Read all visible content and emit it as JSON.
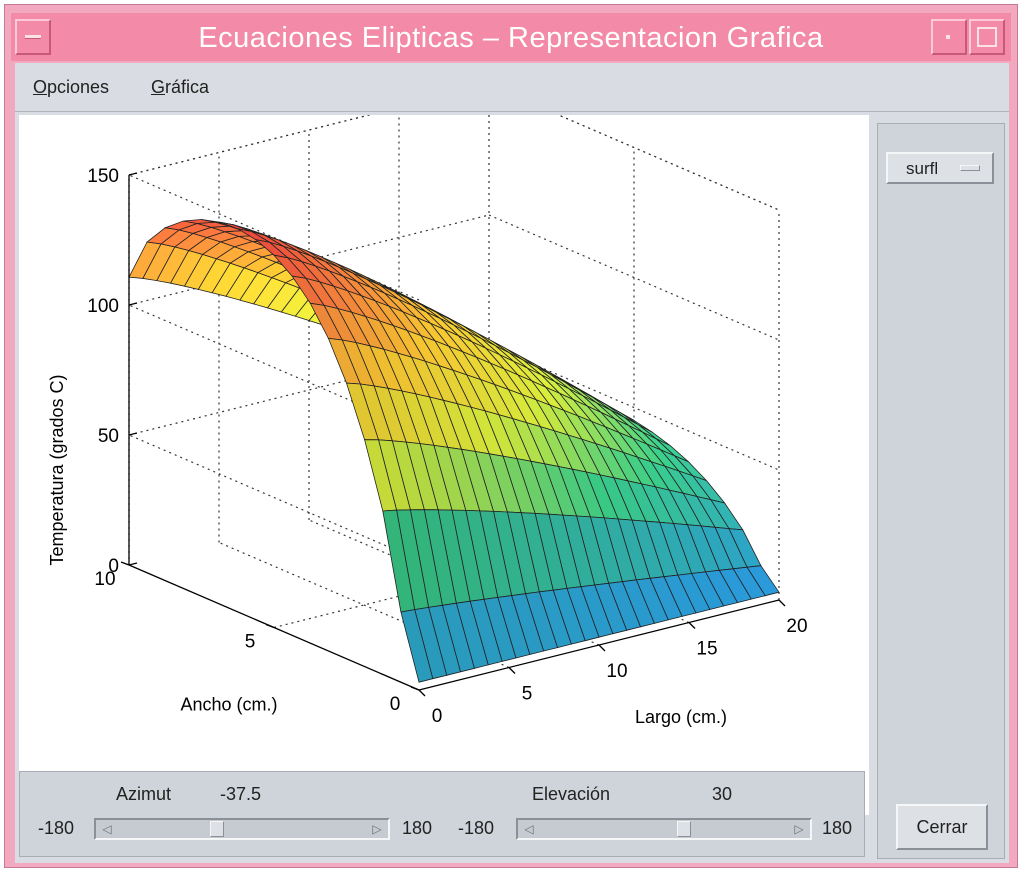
{
  "window": {
    "title": "Ecuaciones Elipticas – Representacion Grafica",
    "titlebar_color": "#f28aa8"
  },
  "menu": {
    "items": [
      {
        "label": "Opciones",
        "mnemonic": "O"
      },
      {
        "label": "Gráfica",
        "mnemonic": "G"
      }
    ]
  },
  "plot_type": {
    "selected": "surfl"
  },
  "close_button": {
    "label": "Cerrar"
  },
  "azimut": {
    "label": "Azimut",
    "value": "-37.5",
    "min_label": "-180",
    "max_label": "180",
    "min": -180,
    "max": 180,
    "current": -37.5
  },
  "elevacion": {
    "label": "Elevación",
    "value": "30",
    "min_label": "-180",
    "max_label": "180",
    "min": -180,
    "max": 180,
    "current": 30
  },
  "chart_data": {
    "type": "surface",
    "xlabel": "Largo (cm.)",
    "ylabel": "Ancho (cm.)",
    "zlabel": "Temperatura (grados C)",
    "x_ticks": [
      "0",
      "5",
      "10",
      "15",
      "20"
    ],
    "y_ticks": [
      "0",
      "5",
      "10"
    ],
    "z_ticks": [
      "0",
      "50",
      "100",
      "150"
    ],
    "xlim": [
      0,
      20
    ],
    "ylim": [
      0,
      10
    ],
    "zlim": [
      0,
      150
    ],
    "grid": true,
    "colormap": "jet-like (blue → green → yellow → orange → red)",
    "view": {
      "azimuth": -37.5,
      "elevation": 30
    }
  }
}
